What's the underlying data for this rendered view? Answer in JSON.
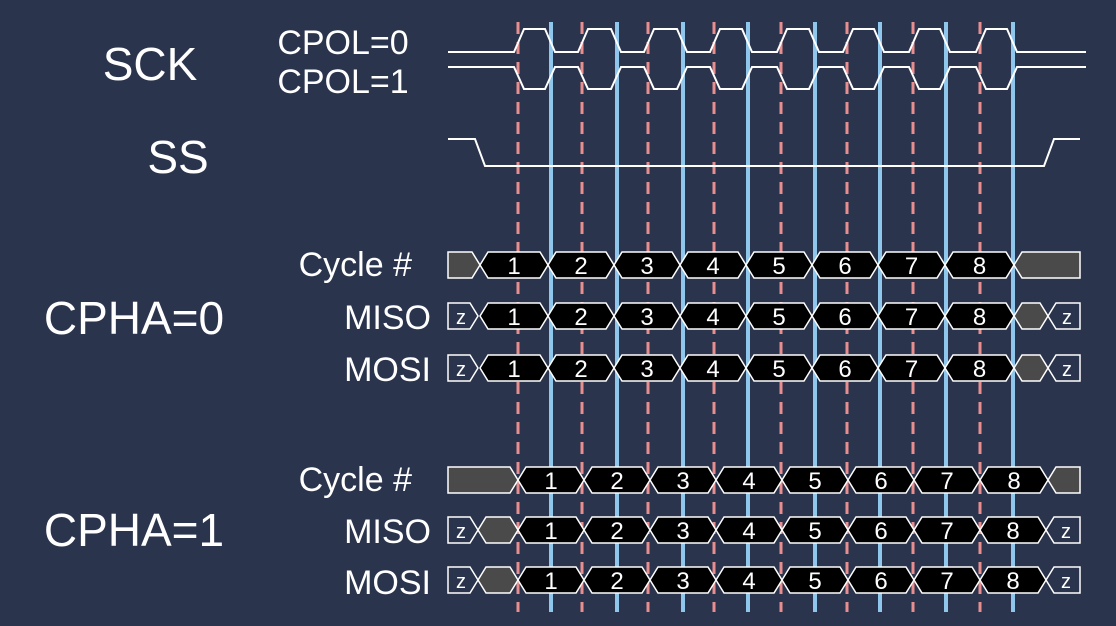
{
  "colors": {
    "background": "#2b344d",
    "signal_line": "#ffffff",
    "data_cell": "#000000",
    "idle_cell": "#4a4a4a",
    "sample_edge": "#8fc6ec",
    "shift_edge": "#e88e8e"
  },
  "labels": {
    "sck": "SCK",
    "cpol0": "CPOL=0",
    "cpol1": "CPOL=1",
    "ss": "SS",
    "cpha0": "CPHA=0",
    "cpha1": "CPHA=1",
    "cycle": "Cycle #",
    "miso": "MISO",
    "mosi": "MOSI",
    "hiz": "z"
  },
  "cycle_numbers": [
    "1",
    "2",
    "3",
    "4",
    "5",
    "6",
    "7",
    "8"
  ]
}
